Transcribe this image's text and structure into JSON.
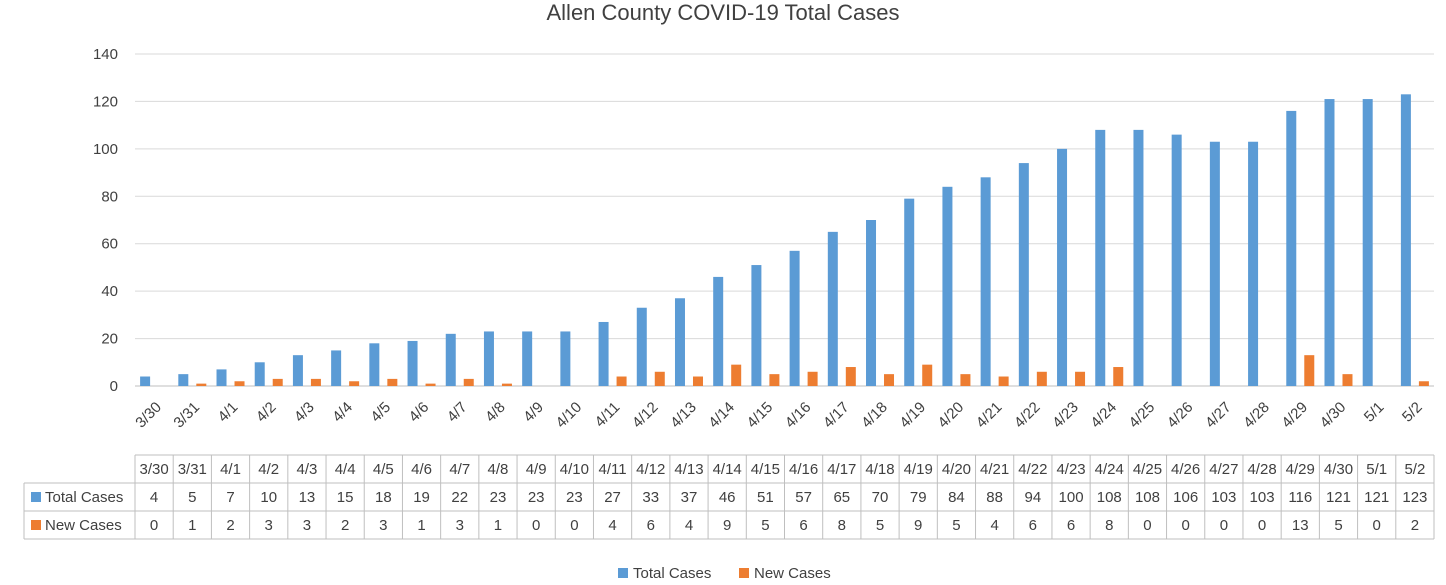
{
  "chart_data": {
    "type": "bar",
    "title": "Allen County COVID-19 Total Cases",
    "xlabel": "",
    "ylabel": "",
    "ylim": [
      0,
      140
    ],
    "yticks": [
      0,
      20,
      40,
      60,
      80,
      100,
      120,
      140
    ],
    "grid": true,
    "legend": "bottom",
    "data_table": true,
    "categories": [
      "3/30",
      "3/31",
      "4/1",
      "4/2",
      "4/3",
      "4/4",
      "4/5",
      "4/6",
      "4/7",
      "4/8",
      "4/9",
      "4/10",
      "4/11",
      "4/12",
      "4/13",
      "4/14",
      "4/15",
      "4/16",
      "4/17",
      "4/18",
      "4/19",
      "4/20",
      "4/21",
      "4/22",
      "4/23",
      "4/24",
      "4/25",
      "4/26",
      "4/27",
      "4/28",
      "4/29",
      "4/30",
      "5/1",
      "5/2"
    ],
    "series": [
      {
        "name": "Total Cases",
        "color": "#5B9BD5",
        "values": [
          4,
          5,
          7,
          10,
          13,
          15,
          18,
          19,
          22,
          23,
          23,
          23,
          27,
          33,
          37,
          46,
          51,
          57,
          65,
          70,
          79,
          84,
          88,
          94,
          100,
          108,
          108,
          106,
          103,
          103,
          116,
          121,
          121,
          123
        ]
      },
      {
        "name": "New Cases",
        "color": "#ED7D31",
        "values": [
          0,
          1,
          2,
          3,
          3,
          2,
          3,
          1,
          3,
          1,
          0,
          0,
          4,
          6,
          4,
          9,
          5,
          6,
          8,
          5,
          9,
          5,
          4,
          6,
          6,
          8,
          0,
          0,
          0,
          0,
          13,
          5,
          0,
          2
        ]
      }
    ]
  }
}
